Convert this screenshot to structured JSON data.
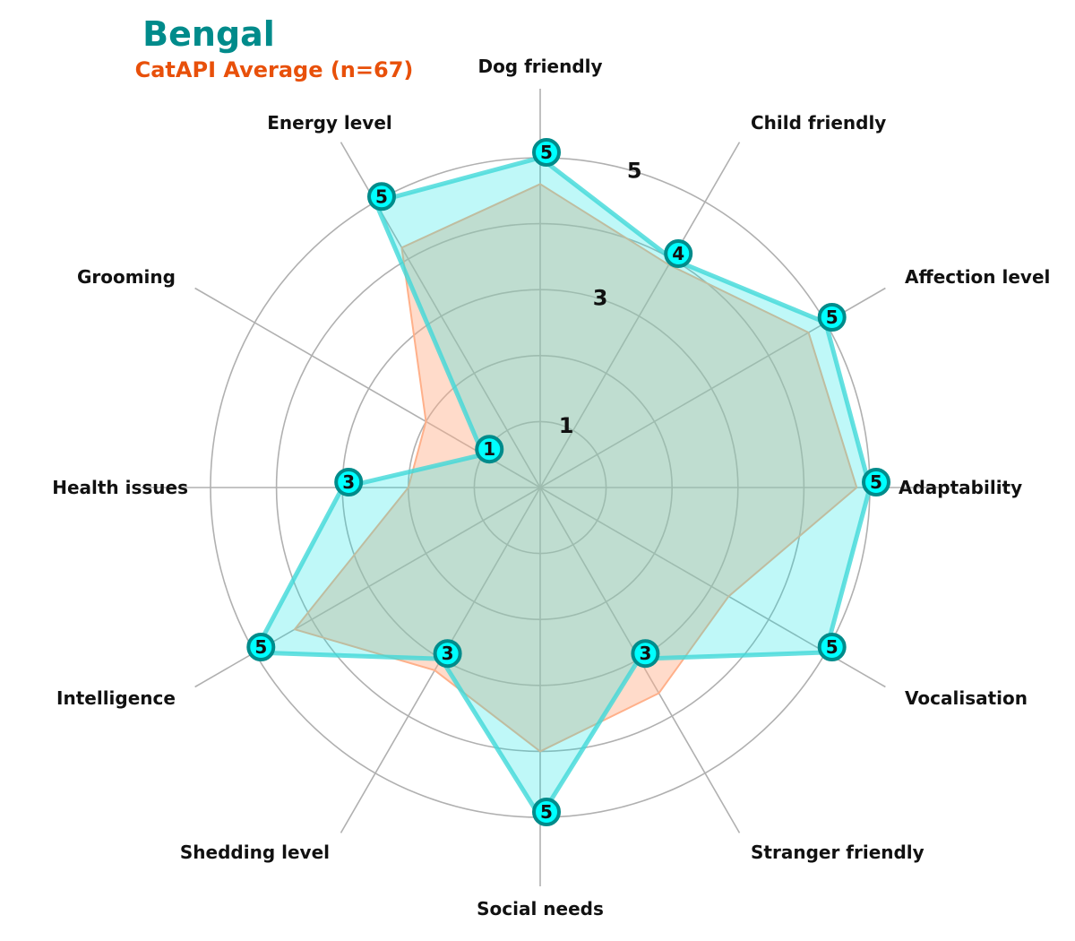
{
  "chart_data": {
    "type": "radar",
    "title": "Bengal",
    "subtitle": "CatAPI Average (n=67)",
    "axes": [
      "Adaptability",
      "Affection level",
      "Child friendly",
      "Dog friendly",
      "Energy level",
      "Grooming",
      "Health issues",
      "Intelligence",
      "Shedding level",
      "Social needs",
      "Stranger friendly",
      "Vocalisation"
    ],
    "rlim": [
      0,
      5
    ],
    "r_ticks": [
      "1",
      "3",
      "5"
    ],
    "r_tick_values": [
      1,
      3,
      5
    ],
    "grid_rings": [
      1,
      2,
      3,
      4,
      5
    ],
    "series": [
      {
        "name": "Bengal",
        "values": [
          5,
          5,
          4,
          5,
          5,
          1,
          3,
          5,
          3,
          5,
          3,
          5
        ],
        "labels": [
          "5",
          "5",
          "4",
          "5",
          "5",
          "1",
          "3",
          "5",
          "3",
          "5",
          "3",
          "5"
        ],
        "color": "#00e5e5",
        "edge_color": "#008b8b"
      },
      {
        "name": "CatAPI Average (n=67)",
        "values": [
          4.8,
          4.7,
          3.9,
          4.6,
          4.2,
          2.0,
          2.0,
          4.3,
          3.2,
          4.0,
          3.6,
          3.3
        ],
        "color": "#ffb08a"
      }
    ],
    "colors": {
      "title": "#008b8b",
      "subtitle": "#e8500a",
      "grid": "#b0b0b0"
    }
  }
}
